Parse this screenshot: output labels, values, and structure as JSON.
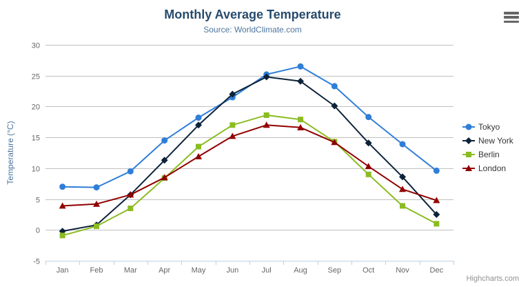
{
  "header": {
    "title": "Monthly Average Temperature",
    "subtitle": "Source: WorldClimate.com"
  },
  "menu": {
    "icon": "hamburger-icon"
  },
  "chart_data": {
    "type": "line",
    "title": "Monthly Average Temperature",
    "subtitle": "Source: WorldClimate.com",
    "categories": [
      "Jan",
      "Feb",
      "Mar",
      "Apr",
      "May",
      "Jun",
      "Jul",
      "Aug",
      "Sep",
      "Oct",
      "Nov",
      "Dec"
    ],
    "xlabel": "",
    "ylabel": "Temperature (°C)",
    "ylim": [
      -5,
      30
    ],
    "ytick_step": 5,
    "grid": "horizontal",
    "legend_position": "right",
    "colors": {
      "grid_line": "#C0C0C0",
      "axis_line": "#C0D0E0",
      "axis_label": "#666666",
      "axis_title": "#4d759e",
      "title": "#274b6d",
      "subtitle": "#4d759e",
      "legend_text": "#333333"
    },
    "series": [
      {
        "name": "Tokyo",
        "color": "#2f7ed8",
        "marker": "circle",
        "values": [
          7.0,
          6.9,
          9.5,
          14.5,
          18.2,
          21.5,
          25.2,
          26.5,
          23.3,
          18.3,
          13.9,
          9.6
        ]
      },
      {
        "name": "New York",
        "color": "#0d233a",
        "marker": "diamond",
        "values": [
          -0.2,
          0.8,
          5.7,
          11.3,
          17.0,
          22.0,
          24.8,
          24.1,
          20.1,
          14.1,
          8.6,
          2.5
        ]
      },
      {
        "name": "Berlin",
        "color": "#8bbc21",
        "marker": "square",
        "values": [
          -0.9,
          0.6,
          3.5,
          8.4,
          13.5,
          17.0,
          18.6,
          17.9,
          14.3,
          9.0,
          3.9,
          1.0
        ]
      },
      {
        "name": "London",
        "color": "#910000",
        "marker": "triangle",
        "values": [
          3.9,
          4.2,
          5.7,
          8.5,
          11.9,
          15.2,
          17.0,
          16.6,
          14.2,
          10.3,
          6.6,
          4.8
        ]
      }
    ]
  },
  "credits": {
    "label": "Highcharts.com"
  }
}
